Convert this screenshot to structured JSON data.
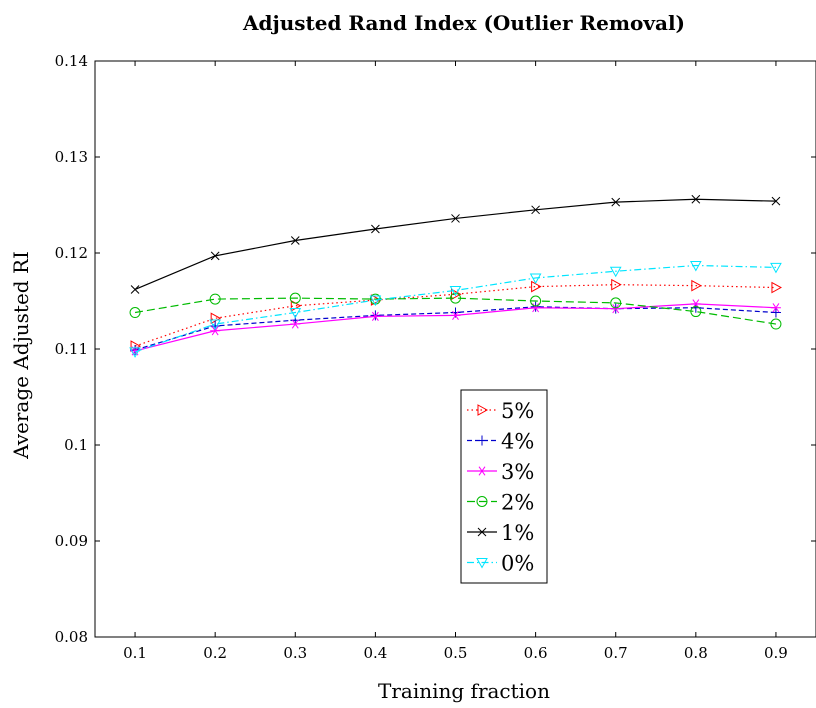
{
  "chart_data": {
    "type": "line",
    "title": "Adjusted Rand Index (Outlier Removal)",
    "xlabel": "Training fraction",
    "ylabel": "Average Adjusted RI",
    "x": [
      0.1,
      0.2,
      0.3,
      0.4,
      0.5,
      0.6,
      0.7,
      0.8,
      0.9
    ],
    "x_ticks": [
      "0.1",
      "0.2",
      "0.3",
      "0.4",
      "0.5",
      "0.6",
      "0.7",
      "0.8",
      "0.9"
    ],
    "xlim": [
      0.05,
      0.95
    ],
    "ylim": [
      0.08,
      0.14
    ],
    "y_ticks": [
      {
        "value": 0.08,
        "label": "0.08"
      },
      {
        "value": 0.09,
        "label": "0.09"
      },
      {
        "value": 0.1,
        "label": "0.1"
      },
      {
        "value": 0.11,
        "label": "0.11"
      },
      {
        "value": 0.12,
        "label": "0.12"
      },
      {
        "value": 0.13,
        "label": "0.13"
      },
      {
        "value": 0.14,
        "label": "0.14"
      }
    ],
    "grid": false,
    "legend_position": "bottom-center",
    "series": [
      {
        "name": "5%",
        "color": "#ff0000",
        "dash": "dotted",
        "marker": "triangle-right",
        "values": [
          0.1103,
          0.1132,
          0.1145,
          0.1151,
          0.1157,
          0.1165,
          0.1167,
          0.1166,
          0.1164
        ]
      },
      {
        "name": "4%",
        "color": "#0000cc",
        "dash": "dashed",
        "marker": "plus",
        "values": [
          0.1099,
          0.1124,
          0.113,
          0.1135,
          0.1138,
          0.1144,
          0.1142,
          0.1143,
          0.1138
        ]
      },
      {
        "name": "3%",
        "color": "#ff00ff",
        "dash": "solid",
        "marker": "asterisk",
        "values": [
          0.1098,
          0.1119,
          0.1126,
          0.1134,
          0.1135,
          0.1143,
          0.1142,
          0.1147,
          0.1143
        ]
      },
      {
        "name": "2%",
        "color": "#00bb00",
        "dash": "longdash",
        "marker": "circle",
        "values": [
          0.1138,
          0.1152,
          0.1153,
          0.1152,
          0.1153,
          0.115,
          0.1148,
          0.1139,
          0.1126
        ]
      },
      {
        "name": "1%",
        "color": "#000000",
        "dash": "solid",
        "marker": "x",
        "values": [
          0.1162,
          0.1197,
          0.1213,
          0.1225,
          0.1236,
          0.1245,
          0.1253,
          0.1256,
          0.1254
        ]
      },
      {
        "name": "0%",
        "color": "#00e5ff",
        "dash": "dashdot",
        "marker": "triangle-down",
        "values": [
          0.1097,
          0.1126,
          0.1138,
          0.1151,
          0.1161,
          0.1174,
          0.1181,
          0.1187,
          0.1185
        ]
      }
    ]
  }
}
